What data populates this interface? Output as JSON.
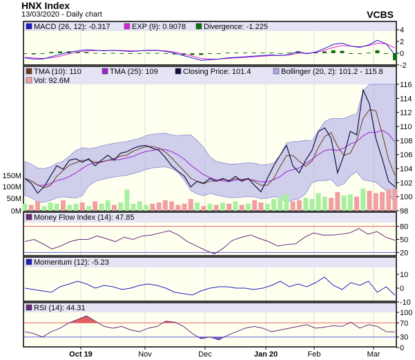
{
  "header": {
    "title": "HNX Index",
    "subtitle": "13/03/2020 - Daily chart",
    "brand": "VCBS"
  },
  "colors": {
    "bg": "#fffff0",
    "band": "#e4e4f4",
    "grid": "#dddddd",
    "macd": "#1c1cc8",
    "exp": "#e020e0",
    "div": "#107010",
    "close": "#101040",
    "tma10": "#6b3a1c",
    "tma25": "#a020d0",
    "boll": "#a8a8e8",
    "vol_up": "#a8f0a0",
    "vol_down": "#f0a0a0",
    "osc": "#6a2a7a",
    "mom": "#2020c0",
    "hi": "#e06060",
    "lo": "#6060e0"
  },
  "chart_data": [
    {
      "type": "line",
      "name": "MACD panel",
      "legend": [
        "MACD (26, 12): -0.317",
        "EXP (9): 0.9078",
        "Divergence: -1.225"
      ],
      "ylim": [
        -2,
        4
      ],
      "ticks": [
        "4",
        "2",
        "0",
        "-2"
      ],
      "macd": [
        -0.8,
        -1,
        -1,
        -0.6,
        -0.2,
        0.2,
        0.4,
        0.6,
        0.5,
        0.4,
        0.5,
        0.4,
        0.3,
        0.4,
        0.5,
        0.5,
        0.3,
        0,
        -0.4,
        -0.8,
        -1.2,
        -1.1,
        -1,
        -0.8,
        -0.7,
        -0.6,
        -0.5,
        -0.4,
        -0.3,
        -0.4,
        -0.2,
        0.3,
        -0.1,
        0.2,
        0.8,
        1.5,
        1.7,
        1.2,
        1.0,
        1.4,
        2.2,
        1.6,
        -0.3
      ],
      "exp": [
        -0.7,
        -0.8,
        -0.9,
        -0.8,
        -0.5,
        -0.1,
        0.2,
        0.4,
        0.45,
        0.45,
        0.45,
        0.45,
        0.4,
        0.4,
        0.45,
        0.45,
        0.4,
        0.2,
        -0.1,
        -0.5,
        -0.9,
        -1.0,
        -1.0,
        -0.9,
        -0.8,
        -0.7,
        -0.6,
        -0.5,
        -0.4,
        -0.4,
        -0.3,
        0.0,
        0.0,
        0.1,
        0.5,
        1.0,
        1.3,
        1.2,
        1.1,
        1.3,
        1.7,
        1.6,
        0.9
      ]
    },
    {
      "type": "line",
      "name": "Price panel",
      "legend": [
        "TMA (10): 110",
        "TMA (25): 109",
        "Closing Price: 101.4",
        "Bollinger (20, 2): 101.2 - 115.8",
        "Vol: 92.6M"
      ],
      "ylim": [
        98,
        116
      ],
      "ticks": [
        "116",
        "114",
        "112",
        "110",
        "108",
        "106",
        "104",
        "102",
        "100",
        "98"
      ],
      "vol_ticks": [
        "150M",
        "100M",
        "50M",
        "0M"
      ],
      "vol_lim": [
        0,
        300
      ],
      "close": [
        102.6,
        101.9,
        100.5,
        101.4,
        102.9,
        104.4,
        103.9,
        105.2,
        105.4,
        104.9,
        105.4,
        104.4,
        105.2,
        105.9,
        105.2,
        106.2,
        106.4,
        106.9,
        107.2,
        107.3,
        106.9,
        106.6,
        105.6,
        104.4,
        103.6,
        102.9,
        101.4,
        102.2,
        101.9,
        102.6,
        102.2,
        102.6,
        102.2,
        102.9,
        102.2,
        102.6,
        101.6,
        100.7,
        102.6,
        104.4,
        105.9,
        107.3,
        104.4,
        103.4,
        105.2,
        106.6,
        109.3,
        109.8,
        108.3,
        103.4,
        105.9,
        109.3,
        108.8,
        115.2,
        113.2,
        108.3,
        105.4,
        102.2,
        101.4
      ],
      "volume": [
        30,
        25,
        40,
        20,
        35,
        30,
        45,
        25,
        30,
        35,
        20,
        40,
        30,
        45,
        25,
        35,
        90,
        30,
        40,
        25,
        30,
        35,
        45,
        40,
        25,
        30,
        50,
        35,
        20,
        30,
        25,
        35,
        30,
        40,
        25,
        30,
        45,
        35,
        30,
        50,
        60,
        70,
        40,
        45,
        55,
        50,
        75,
        60,
        55,
        80,
        65,
        70,
        60,
        95,
        85,
        75,
        80,
        90,
        92.6
      ]
    },
    {
      "type": "line",
      "name": "Money Flow Index",
      "legend": [
        "Money Flow Index (14): 47.85"
      ],
      "ylim": [
        0,
        100
      ],
      "ticks": [
        "80",
        "50",
        "20"
      ],
      "levels": [
        80,
        20
      ],
      "values": [
        45,
        50,
        40,
        28,
        35,
        45,
        50,
        50,
        58,
        52,
        45,
        55,
        50,
        58,
        60,
        65,
        70,
        60,
        45,
        35,
        25,
        17,
        30,
        48,
        55,
        60,
        52,
        45,
        35,
        38,
        40,
        55,
        65,
        60,
        60,
        62,
        65,
        75,
        62,
        68,
        55,
        48
      ]
    },
    {
      "type": "line",
      "name": "Momentum",
      "legend": [
        "Momentum (12): -5.23"
      ],
      "ylim": [
        -10,
        10
      ],
      "ticks": [
        "10",
        "0",
        "-10"
      ],
      "values": [
        0,
        -1,
        -2,
        -3,
        1,
        3,
        5,
        3,
        0,
        2,
        1,
        -1,
        0,
        2,
        3,
        2,
        0,
        -3,
        -4,
        -5,
        -2,
        0,
        1,
        1,
        0,
        0,
        -1,
        0,
        2,
        5,
        1,
        3,
        1,
        4,
        8,
        2,
        -1,
        4,
        2,
        5,
        -3,
        1,
        -5.2
      ]
    },
    {
      "type": "line",
      "name": "RSI",
      "legend": [
        "RSI (14): 44.31"
      ],
      "ylim": [
        0,
        100
      ],
      "ticks": [
        "100",
        "70",
        "30",
        "0"
      ],
      "levels": [
        70,
        30
      ],
      "values": [
        45,
        40,
        30,
        45,
        55,
        70,
        80,
        90,
        75,
        60,
        55,
        60,
        50,
        45,
        55,
        60,
        75,
        72,
        60,
        40,
        25,
        30,
        22,
        35,
        45,
        55,
        60,
        55,
        45,
        50,
        55,
        60,
        65,
        55,
        58,
        62,
        60,
        72,
        55,
        65,
        60,
        45,
        44.3
      ]
    }
  ],
  "x_axis": {
    "labels": [
      "Oct 19",
      "Nov",
      "Dec",
      "Jan 20",
      "Feb",
      "Mar"
    ],
    "bold": [
      true,
      false,
      false,
      true,
      false,
      false
    ]
  }
}
